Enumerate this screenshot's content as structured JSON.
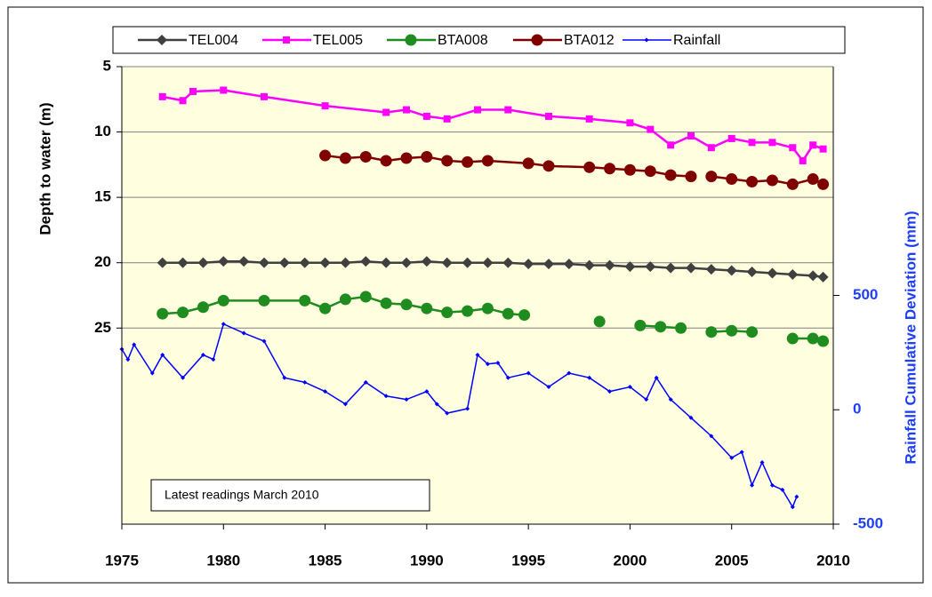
{
  "chart_data": {
    "type": "line",
    "y_label": "Depth to water (m)",
    "y2_label": "Rainfall Cumulative Deviation (mm)",
    "annotation": "Latest readings  March 2010",
    "xlim": [
      1975,
      2010
    ],
    "xticks": [
      1975,
      1980,
      1985,
      1990,
      1995,
      2000,
      2005,
      2010
    ],
    "ylim": [
      5,
      40
    ],
    "y_inverted": true,
    "yticks": [
      5,
      10,
      15,
      20,
      25
    ],
    "y2lim": [
      -500,
      1500
    ],
    "y2ticks": [
      -500,
      0,
      500
    ],
    "grid": true,
    "legend": "top",
    "series": [
      {
        "name": "TEL004",
        "color": "#404040",
        "marker": "diamond",
        "x": [
          1977,
          1978,
          1979,
          1980,
          1981,
          1982,
          1983,
          1984,
          1985,
          1986,
          1987,
          1988,
          1989,
          1990,
          1991,
          1992,
          1993,
          1994,
          1995,
          1996,
          1997,
          1998,
          1999,
          2000,
          2001,
          2002,
          2003,
          2004,
          2005,
          2006,
          2007,
          2008,
          2009,
          2009.5
        ],
        "values": [
          20,
          20,
          20,
          19.9,
          19.9,
          20,
          20,
          20,
          20,
          20,
          19.9,
          20,
          20,
          19.9,
          20,
          20,
          20,
          20,
          20.1,
          20.1,
          20.1,
          20.2,
          20.2,
          20.3,
          20.3,
          20.4,
          20.4,
          20.5,
          20.6,
          20.7,
          20.8,
          20.9,
          21,
          21.1
        ]
      },
      {
        "name": "TEL005",
        "color": "#ff00ff",
        "marker": "square",
        "x": [
          1977,
          1978,
          1978.5,
          1980,
          1982,
          1985,
          1988,
          1989,
          1990,
          1991,
          1992.5,
          1994,
          1996,
          1998,
          2000,
          2001,
          2002,
          2003,
          2004,
          2005,
          2006,
          2007,
          2008,
          2008.5,
          2009,
          2009.5
        ],
        "values": [
          7.3,
          7.6,
          6.9,
          6.8,
          7.3,
          8,
          8.5,
          8.3,
          8.8,
          9,
          8.3,
          8.3,
          8.8,
          9,
          9.3,
          9.8,
          11,
          10.3,
          11.2,
          10.5,
          10.8,
          10.8,
          11.2,
          12.2,
          11,
          11.3
        ]
      },
      {
        "name": "BTA008",
        "color": "#1e8c1e",
        "marker": "circle",
        "x": [
          1977,
          1978,
          1979,
          1980,
          1982,
          1984,
          1985,
          1986,
          1987,
          1988,
          1989,
          1990,
          1991,
          1992,
          1993,
          1994,
          1994.8,
          1996,
          1998.5,
          1999.5,
          2000.5,
          2001.5,
          2002.5,
          2003.2,
          2004,
          2005,
          2006,
          2007,
          2008,
          2009,
          2009.5
        ],
        "values": [
          23.9,
          23.8,
          23.4,
          22.9,
          22.9,
          22.9,
          23.5,
          22.8,
          22.6,
          23.1,
          23.2,
          23.5,
          23.8,
          23.7,
          23.5,
          23.9,
          24,
          null,
          24.5,
          null,
          24.8,
          24.9,
          25,
          null,
          25.3,
          25.2,
          25.3,
          null,
          25.8,
          25.8,
          26
        ]
      },
      {
        "name": "BTA012",
        "color": "#800000",
        "marker": "circle",
        "x": [
          1985,
          1986,
          1987,
          1988,
          1989,
          1990,
          1991,
          1992,
          1993,
          1995,
          1996,
          1998,
          1999,
          2000,
          2001,
          2002,
          2003,
          2003.5,
          2004,
          2005,
          2006,
          2007,
          2008,
          2009,
          2009.5
        ],
        "values": [
          11.8,
          12,
          11.9,
          12.2,
          12,
          11.9,
          12.2,
          12.3,
          12.2,
          12.4,
          12.6,
          12.7,
          12.8,
          12.9,
          13,
          13.3,
          13.4,
          null,
          13.4,
          13.6,
          13.8,
          13.7,
          14,
          13.6,
          14
        ]
      },
      {
        "name": "Rainfall",
        "color": "#0000ff",
        "marker": "small-diamond",
        "axis": "y2",
        "x": [
          1975,
          1975.3,
          1975.6,
          1976.5,
          1977,
          1978,
          1979,
          1979.5,
          1980,
          1981,
          1982,
          1983,
          1984,
          1985,
          1986,
          1987,
          1988,
          1989,
          1990,
          1990.5,
          1991,
          1992,
          1992.5,
          1993,
          1993.5,
          1994,
          1995,
          1996,
          1997,
          1998,
          1999,
          2000,
          2000.8,
          2001.3,
          2002,
          2003,
          2004,
          2005,
          2005.5,
          2006,
          2006.5,
          2007,
          2007.5,
          2008,
          2008.2
        ],
        "values": [
          265,
          220,
          285,
          160,
          240,
          140,
          240,
          220,
          375,
          335,
          300,
          140,
          120,
          80,
          25,
          120,
          60,
          45,
          80,
          25,
          -15,
          5,
          240,
          200,
          205,
          140,
          160,
          100,
          160,
          140,
          80,
          100,
          45,
          140,
          45,
          -35,
          -115,
          -210,
          -185,
          -330,
          -230,
          -330,
          -350,
          -425,
          -380
        ]
      }
    ]
  }
}
